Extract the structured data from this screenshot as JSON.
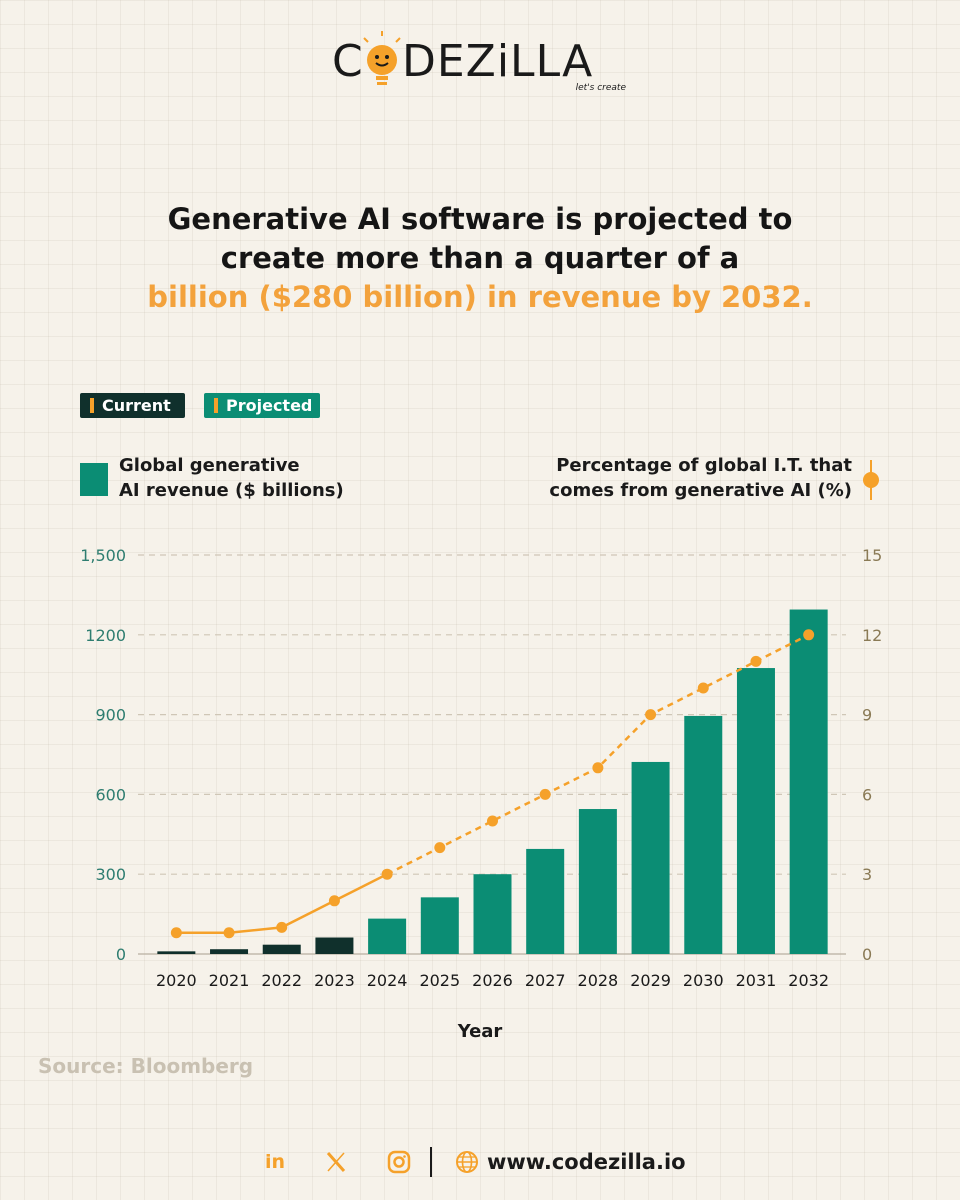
{
  "brand": {
    "name_part1": "C",
    "name_part2": "DEZiLLA",
    "tagline": "let's create"
  },
  "headline": {
    "line1": "Generative AI software is projected to",
    "line2": "create more than a quarter of a",
    "line3_highlight": "billion ($280 billion) in revenue by 2032."
  },
  "badges": {
    "current": "Current",
    "projected": "Projected"
  },
  "legend": {
    "left_line1": "Global generative",
    "left_line2": "AI revenue ($ billions)",
    "right_line1": "Percentage of global I.T. that",
    "right_line2": "comes from generative AI (%)"
  },
  "colors": {
    "current": "#10302c",
    "projected": "#0b8d74",
    "line": "#f5a12a",
    "axis_left": "#2e7d70",
    "axis_right": "#8a7a55"
  },
  "chart_data": {
    "type": "bar",
    "categories": [
      "2020",
      "2021",
      "2022",
      "2023",
      "2024",
      "2025",
      "2026",
      "2027",
      "2028",
      "2029",
      "2030",
      "2031",
      "2032"
    ],
    "xlabel": "Year",
    "ylabel_left": "Global generative AI revenue ($ billions)",
    "ylabel_right": "Percentage of global I.T. that comes from generative AI (%)",
    "ylim_left": [
      0,
      1500
    ],
    "ylim_right": [
      0,
      15
    ],
    "yticks_left": [
      "0",
      "300",
      "600",
      "900",
      "1200",
      "1,500"
    ],
    "yticks_right": [
      "0",
      "3",
      "6",
      "9",
      "12",
      "15"
    ],
    "series": [
      {
        "name": "Global generative AI revenue ($ billions)",
        "type": "bar",
        "values": [
          10,
          18,
          35,
          62,
          133,
          213,
          300,
          395,
          545,
          722,
          895,
          1075,
          1295
        ],
        "status": [
          "current",
          "current",
          "current",
          "current",
          "projected",
          "projected",
          "projected",
          "projected",
          "projected",
          "projected",
          "projected",
          "projected",
          "projected"
        ]
      },
      {
        "name": "Percentage of global I.T. that comes from generative AI (%)",
        "type": "line",
        "values": [
          0.8,
          0.8,
          1,
          2,
          3,
          4,
          5,
          6,
          7,
          9,
          10,
          11,
          12
        ]
      }
    ],
    "grid": true
  },
  "source": "Source: Bloomberg",
  "footer": {
    "linkedin": "in",
    "website": "www.codezilla.io"
  }
}
